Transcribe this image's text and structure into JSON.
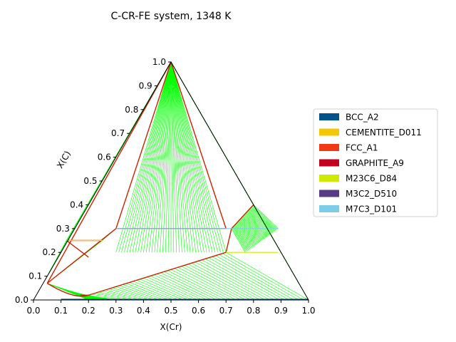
{
  "chart_data": {
    "type": "ternary",
    "title": "C-CR-FE system, 1348 K",
    "xlabel": "X(Cr)",
    "ylabel": "X(C)",
    "xlim": [
      0,
      1
    ],
    "ylim": [
      0,
      1
    ],
    "xticks": [
      "0.0",
      "0.1",
      "0.2",
      "0.3",
      "0.4",
      "0.5",
      "0.6",
      "0.7",
      "0.8",
      "0.9",
      "1.0"
    ],
    "yticks": [
      "0.0",
      "0.1",
      "0.2",
      "0.3",
      "0.4",
      "0.5",
      "0.6",
      "0.7",
      "0.8",
      "0.9",
      "1.0"
    ],
    "legend_position": "right",
    "legend": [
      {
        "name": "BCC_A2",
        "color": "#00538a"
      },
      {
        "name": "CEMENTITE_D011",
        "color": "#f4c800"
      },
      {
        "name": "FCC_A1",
        "color": "#f13a13"
      },
      {
        "name": "GRAPHITE_A9",
        "color": "#c10020"
      },
      {
        "name": "M23C6_D84",
        "color": "#cdea00"
      },
      {
        "name": "M3C2_D510",
        "color": "#593a87"
      },
      {
        "name": "M7C3_D101",
        "color": "#7ecde8"
      }
    ],
    "tieline_color": "#00ff00",
    "boundary_color": "#cc2200",
    "regions": [
      {
        "name": "graphite-m7c3",
        "a": [
          [
            0.5,
            1.0
          ]
        ],
        "b": [
          [
            0.3,
            0.2
          ],
          [
            0.7,
            0.2
          ]
        ]
      },
      {
        "name": "graphite-m3c2",
        "a": [
          [
            0.5,
            1.0
          ]
        ],
        "b": [
          [
            0.8,
            0.4
          ],
          [
            1.0,
            0.0
          ]
        ]
      },
      {
        "name": "graphite-fcc",
        "a": [
          [
            0.5,
            1.0
          ]
        ],
        "b": [
          [
            0.04,
            0.08
          ],
          [
            0.12,
            0.25
          ]
        ]
      },
      {
        "name": "m7c3-m23c6-left",
        "a": [
          [
            0.3,
            0.3
          ],
          [
            0.05,
            0.07
          ]
        ],
        "b": [
          [
            0.3,
            0.3
          ],
          [
            0.25,
            0.25
          ]
        ]
      },
      {
        "name": "m3c2-m7c3",
        "a": [
          [
            0.8,
            0.4
          ],
          [
            0.72,
            0.3
          ]
        ],
        "b": [
          [
            0.89,
            0.3
          ],
          [
            0.77,
            0.2
          ]
        ]
      },
      {
        "name": "m23c6-bcc",
        "a": [
          [
            0.7,
            0.2
          ],
          [
            0.2,
            0.02
          ]
        ],
        "b": [
          [
            1.0,
            0.0
          ],
          [
            0.3,
            0.0
          ]
        ]
      },
      {
        "name": "fcc-bcc",
        "a": [
          [
            0.05,
            0.07
          ],
          [
            0.17,
            0.02
          ]
        ],
        "b": [
          [
            0.2,
            0.0
          ],
          [
            0.3,
            0.0
          ]
        ]
      }
    ]
  }
}
